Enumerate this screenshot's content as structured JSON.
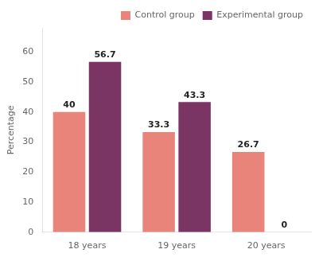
{
  "chart_data": {
    "type": "bar",
    "categories": [
      "18 years",
      "19 years",
      "20 years"
    ],
    "series": [
      {
        "name": "Control group",
        "color": "#E8847A",
        "values": [
          40,
          33.3,
          26.7
        ]
      },
      {
        "name": "Experimental group",
        "color": "#7B3565",
        "values": [
          56.7,
          43.3,
          0
        ]
      }
    ],
    "ylabel": "Percentage",
    "ylim": [
      0,
      68
    ],
    "yticks": [
      0,
      10,
      20,
      30,
      40,
      50,
      60
    ],
    "grid": false,
    "legend": "upper right",
    "data_labels": true
  }
}
